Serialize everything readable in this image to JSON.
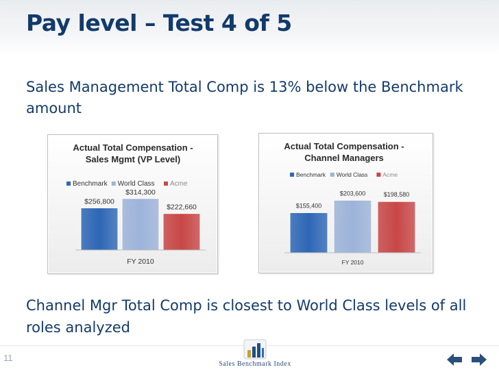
{
  "slide": {
    "title": "Pay level – Test 4 of 5",
    "text_top": "Sales Management Total Comp is 13% below the Benchmark amount",
    "text_bottom": "Channel Mgr Total Comp is closest to World Class levels of all roles analyzed",
    "page_number": "11",
    "logo_text": "Sales Benchmark Index"
  },
  "colors": {
    "title": "#123a6b",
    "benchmark": "#2e67b5",
    "world_class": "#9db3d9",
    "acme": "#c84747"
  },
  "icons": {
    "logo": "column-bars-logo",
    "prev": "arrow-left-icon",
    "next": "arrow-right-icon"
  },
  "chart_data": [
    {
      "type": "bar",
      "title": "Actual Total Compensation - Sales Mgmt (VP Level)",
      "title_lines": [
        "Actual Total Compensation -",
        "Sales Mgmt (VP Level)"
      ],
      "categories": [
        "FY 2010"
      ],
      "series": [
        {
          "name": "Benchmark",
          "values": [
            256800
          ],
          "label": "$256,800"
        },
        {
          "name": "World Class",
          "values": [
            314300
          ],
          "label": "$314,300"
        },
        {
          "name": "Acme",
          "values": [
            222660
          ],
          "label": "$222,660"
        }
      ],
      "xlabel": "FY 2010",
      "ylim": [
        0,
        330000
      ],
      "legend": "top",
      "grid": false
    },
    {
      "type": "bar",
      "title": "Actual Total Compensation - Channel Managers",
      "title_lines": [
        "Actual Total Compensation -",
        "Channel Managers"
      ],
      "categories": [
        "FY 2010"
      ],
      "series": [
        {
          "name": "Benchmark",
          "values": [
            155400
          ],
          "label": "$155,400"
        },
        {
          "name": "World Class",
          "values": [
            203600
          ],
          "label": "$203,600"
        },
        {
          "name": "Acme",
          "values": [
            198580
          ],
          "label": "$198,580"
        }
      ],
      "xlabel": "FY 2010",
      "ylim": [
        0,
        215000
      ],
      "legend": "top",
      "grid": false
    }
  ]
}
